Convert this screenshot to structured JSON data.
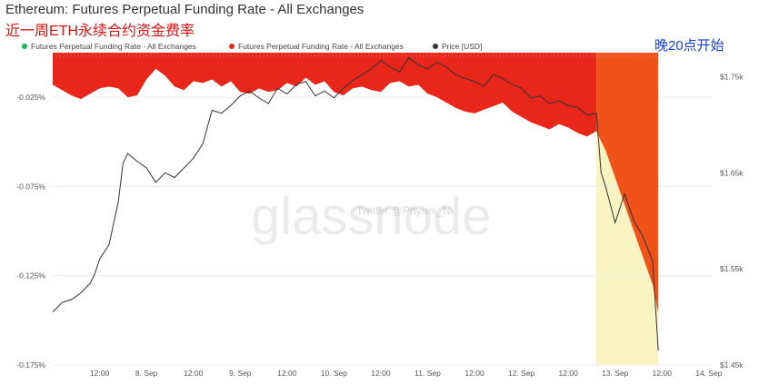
{
  "header": {
    "title": "Ethereum: Futures Perpetual Funding Rate - All Exchanges",
    "subtitle": "近一周ETH永续合约资金费率",
    "annotation": "晚20点开始"
  },
  "legend": [
    {
      "label": "Futures Perpetual Funding Rate - All Exchanges",
      "color": "#18b35a"
    },
    {
      "label": "Futures Perpetual Funding Rate - All Exchanges",
      "color": "#e02b1a"
    },
    {
      "label": "Price [USD]",
      "color": "#333333"
    }
  ],
  "watermark": {
    "logo": "glassnode",
    "handle": "Twitter @Phyrex_Ni"
  },
  "chart_data": {
    "type": "area",
    "x_ticks": [
      "12:00",
      "8. Sep",
      "12:00",
      "9. Sep",
      "12:00",
      "10. Sep",
      "12:00",
      "11. Sep",
      "12:00",
      "12. Sep",
      "12:00",
      "13. Sep",
      "12:00",
      "14. Sep"
    ],
    "y_left_ticks": [
      "-0.025%",
      "-0.075%",
      "-0.125%",
      "-0.175%"
    ],
    "y_left_range": [
      -0.175,
      0.0
    ],
    "y_right_ticks": [
      "$1.75k",
      "$1.65k",
      "$1.55k",
      "$1.45k"
    ],
    "y_right_range": [
      1450,
      1775
    ],
    "x_range": [
      0,
      7.04
    ],
    "highlight_range": [
      5.8,
      6.46
    ],
    "colors": {
      "funding": "#e8271a",
      "funding_late": "#f0521a",
      "price": "#333333",
      "highlight": "#f8f3c0"
    },
    "series": [
      {
        "axis": "left",
        "x": [
          0,
          0.1,
          0.2,
          0.3,
          0.4,
          0.5,
          0.6,
          0.7,
          0.8,
          0.9,
          1.0,
          1.1,
          1.2,
          1.3,
          1.4,
          1.5,
          1.6,
          1.7,
          1.8,
          1.9,
          2.0,
          2.1,
          2.2,
          2.3,
          2.4,
          2.5,
          2.6,
          2.7,
          2.8,
          2.9,
          3.0,
          3.1,
          3.2,
          3.3,
          3.4,
          3.5,
          3.6,
          3.7,
          3.8,
          3.9,
          4.0,
          4.1,
          4.2,
          4.3,
          4.4,
          4.5,
          4.6,
          4.7,
          4.8,
          4.9,
          5.0,
          5.1,
          5.2,
          5.3,
          5.4,
          5.5,
          5.6,
          5.7,
          5.8,
          5.9,
          6.0,
          6.1,
          6.2,
          6.3,
          6.4,
          6.46
        ],
        "values": [
          -0.018,
          -0.021,
          -0.024,
          -0.026,
          -0.023,
          -0.02,
          -0.019,
          -0.02,
          -0.025,
          -0.024,
          -0.015,
          -0.009,
          -0.013,
          -0.019,
          -0.021,
          -0.016,
          -0.017,
          -0.015,
          -0.019,
          -0.016,
          -0.022,
          -0.023,
          -0.02,
          -0.022,
          -0.021,
          -0.017,
          -0.019,
          -0.014,
          -0.018,
          -0.016,
          -0.022,
          -0.024,
          -0.02,
          -0.019,
          -0.021,
          -0.022,
          -0.017,
          -0.016,
          -0.019,
          -0.018,
          -0.023,
          -0.025,
          -0.028,
          -0.031,
          -0.033,
          -0.034,
          -0.032,
          -0.03,
          -0.028,
          -0.033,
          -0.036,
          -0.039,
          -0.041,
          -0.043,
          -0.04,
          -0.042,
          -0.045,
          -0.047,
          -0.044,
          -0.055,
          -0.07,
          -0.085,
          -0.1,
          -0.115,
          -0.13,
          -0.146
        ]
      },
      {
        "name": "Price [USD]",
        "axis": "right",
        "x": [
          0,
          0.05,
          0.1,
          0.2,
          0.3,
          0.4,
          0.45,
          0.5,
          0.6,
          0.7,
          0.75,
          0.8,
          0.9,
          1.0,
          1.1,
          1.2,
          1.3,
          1.4,
          1.5,
          1.6,
          1.7,
          1.8,
          1.9,
          2.0,
          2.1,
          2.2,
          2.3,
          2.4,
          2.5,
          2.6,
          2.7,
          2.8,
          2.9,
          3.0,
          3.1,
          3.2,
          3.3,
          3.4,
          3.5,
          3.6,
          3.7,
          3.8,
          3.9,
          4.0,
          4.1,
          4.2,
          4.3,
          4.4,
          4.5,
          4.6,
          4.7,
          4.8,
          4.9,
          5.0,
          5.1,
          5.2,
          5.3,
          5.4,
          5.5,
          5.6,
          5.7,
          5.8,
          5.85,
          5.9,
          6.0,
          6.1,
          6.2,
          6.3,
          6.4,
          6.46
        ],
        "values": [
          1505,
          1510,
          1515,
          1518,
          1525,
          1535,
          1545,
          1560,
          1575,
          1620,
          1660,
          1670,
          1662,
          1655,
          1640,
          1650,
          1645,
          1655,
          1665,
          1680,
          1715,
          1712,
          1720,
          1730,
          1735,
          1728,
          1722,
          1738,
          1732,
          1742,
          1745,
          1730,
          1735,
          1728,
          1738,
          1746,
          1752,
          1758,
          1767,
          1760,
          1755,
          1770,
          1762,
          1758,
          1765,
          1760,
          1752,
          1748,
          1745,
          1740,
          1752,
          1748,
          1742,
          1738,
          1728,
          1730,
          1722,
          1725,
          1720,
          1718,
          1710,
          1712,
          1650,
          1635,
          1598,
          1628,
          1600,
          1583,
          1558,
          1465
        ]
      }
    ]
  }
}
